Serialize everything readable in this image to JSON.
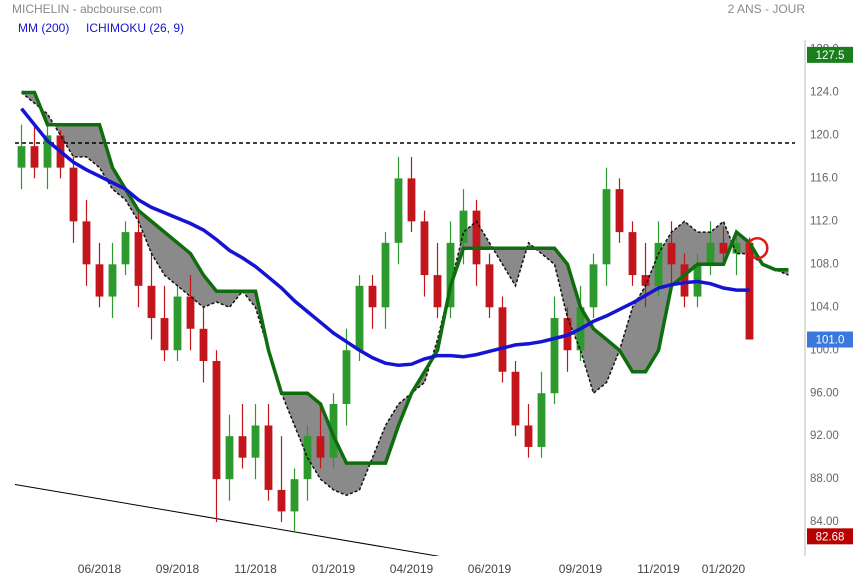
{
  "chart_data": {
    "type": "candlestick",
    "title": "MICHELIN - abcbourse.com",
    "period": "2 ANS - JOUR",
    "categories": [
      null,
      null,
      null,
      null,
      null,
      null,
      "06/2018",
      null,
      null,
      null,
      null,
      null,
      "09/2018",
      null,
      null,
      null,
      null,
      null,
      "11/2018",
      null,
      null,
      null,
      null,
      null,
      "01/2019",
      null,
      null,
      null,
      null,
      null,
      "04/2019",
      null,
      null,
      null,
      null,
      null,
      "06/2019",
      null,
      null,
      null,
      null,
      null,
      null,
      "09/2019",
      null,
      null,
      null,
      null,
      null,
      "11/2019",
      null,
      null,
      null,
      null,
      "01/2020",
      null,
      null,
      null,
      null,
      null
    ],
    "candles": {
      "up_color": "#2c9a2c",
      "down_color": "#c3161c",
      "open": [
        117,
        119,
        117,
        120,
        117,
        112,
        108,
        105,
        108,
        111,
        106,
        103,
        100,
        105,
        102,
        99,
        88,
        92,
        90,
        93,
        87,
        85,
        88,
        92,
        90,
        95,
        100,
        106,
        104,
        110,
        116,
        112,
        107,
        104,
        110,
        113,
        108,
        104,
        98,
        93,
        91,
        96,
        103,
        100,
        104,
        108,
        115,
        111,
        107,
        106,
        110,
        108,
        105,
        108,
        110,
        109,
        110,
        null,
        null,
        null
      ],
      "high": [
        121,
        121,
        121,
        120.5,
        118,
        114,
        110,
        110,
        112,
        113,
        109,
        106,
        106,
        107,
        104,
        100,
        94,
        95,
        95,
        95,
        92,
        89,
        93,
        95,
        96,
        102,
        107,
        107,
        111,
        118,
        118,
        113,
        110,
        112,
        115,
        114,
        109,
        105,
        99,
        95,
        98,
        105,
        104,
        106,
        109,
        117,
        116,
        112,
        110,
        112,
        112,
        109,
        109,
        112,
        111.5,
        111,
        110.5,
        null,
        null,
        null
      ],
      "low": [
        115,
        116,
        115,
        116,
        110,
        106,
        104,
        103,
        107,
        104,
        101,
        99,
        99,
        100,
        97,
        84,
        86,
        89,
        88,
        86,
        84,
        83,
        86,
        89,
        89,
        93,
        99,
        102,
        102,
        108,
        111,
        105,
        103,
        103,
        108,
        106,
        103,
        97,
        92,
        90,
        90,
        95,
        98,
        99,
        103,
        106,
        110,
        106,
        104,
        105,
        106,
        104,
        104,
        107,
        108,
        107,
        101,
        null,
        null,
        null
      ],
      "close": [
        119,
        117,
        120,
        117,
        112,
        108,
        105,
        108,
        111,
        106,
        103,
        100,
        105,
        102,
        99,
        88,
        92,
        90,
        93,
        87,
        85,
        88,
        92,
        90,
        95,
        100,
        106,
        104,
        110,
        116,
        112,
        107,
        104,
        110,
        113,
        108,
        104,
        98,
        93,
        91,
        96,
        103,
        100,
        104,
        108,
        115,
        111,
        107,
        106,
        110,
        108,
        105,
        108,
        110,
        109,
        110,
        101,
        null,
        null,
        null
      ]
    },
    "indicators": [
      {
        "name": "MM (200)",
        "color": "#1414d2",
        "values": [
          122.5,
          121,
          119.5,
          118.5,
          117.5,
          116.8,
          116.2,
          115.6,
          115,
          114,
          113.3,
          112.8,
          112.3,
          111.8,
          111.2,
          110.3,
          109.3,
          108.6,
          107.8,
          106.8,
          105.8,
          104.6,
          103.6,
          102.6,
          101.6,
          100.8,
          100,
          99.3,
          98.8,
          98.6,
          98.7,
          99.2,
          99.5,
          99.5,
          99.4,
          99.6,
          99.9,
          100.2,
          100.5,
          100.6,
          100.8,
          101.1,
          101.4,
          102,
          102.7,
          103.2,
          103.8,
          104.4,
          105.1,
          105.8,
          106.1,
          106.3,
          106.4,
          106.2,
          105.8,
          105.6,
          105.6,
          null,
          null,
          null
        ]
      },
      {
        "name": "ICHIMOKU (26, 9)",
        "color": "#1414d2",
        "cloud_color": "#8a8a8a",
        "span_a": {
          "color": "#0e6e0e",
          "values": [
            124,
            124,
            121,
            121,
            121,
            121,
            121,
            117,
            115,
            113,
            112,
            111,
            110,
            109,
            107,
            105.5,
            105.5,
            105.5,
            105.5,
            100,
            96,
            96,
            96,
            95,
            92,
            89.5,
            89.5,
            89.5,
            89.5,
            93,
            96,
            98,
            100,
            106,
            109.5,
            109.5,
            109.5,
            109.5,
            109.5,
            109.5,
            109.5,
            109.5,
            108,
            104,
            102,
            101,
            100,
            98,
            98,
            100,
            106,
            107,
            108,
            108,
            108,
            111,
            110,
            108,
            107.5,
            107.5
          ]
        },
        "span_b": {
          "color": "#111111",
          "values": [
            124,
            123,
            122,
            120,
            118,
            118,
            117,
            115,
            114,
            112,
            109,
            107,
            106,
            105,
            104,
            104.5,
            104,
            105.5,
            104,
            100,
            96,
            93,
            90,
            88,
            87,
            86.5,
            87,
            90,
            93,
            95,
            96,
            97,
            101,
            106,
            111,
            112,
            110,
            108,
            106,
            110,
            109,
            108,
            103,
            100,
            96,
            97,
            100,
            104,
            106,
            109,
            111,
            112,
            111,
            111,
            112,
            109,
            109,
            108,
            107.5,
            107
          ]
        }
      }
    ],
    "ylim": [
      81.5,
      130
    ],
    "yticks": [
      {
        "value": 84,
        "label": "84.00"
      },
      {
        "value": 88,
        "label": "88.00"
      },
      {
        "value": 92,
        "label": "92.00"
      },
      {
        "value": 96,
        "label": "96.00"
      },
      {
        "value": 100,
        "label": "100.0"
      },
      {
        "value": 104,
        "label": "104.0"
      },
      {
        "value": 108,
        "label": "108.0"
      },
      {
        "value": 112,
        "label": "112.0"
      },
      {
        "value": 116,
        "label": "116.0"
      },
      {
        "value": 120,
        "label": "120.0"
      },
      {
        "value": 124,
        "label": "124.0"
      },
      {
        "value": 128,
        "label": "128.0"
      }
    ],
    "badges": [
      {
        "value": 127.5,
        "color": "#1a7f1a"
      },
      {
        "value": {
          "value": 101,
          "label": "101.0"
        },
        "color": "#3a78e0"
      },
      {
        "value": 82.68,
        "color": "#b80000"
      }
    ],
    "resistance": {
      "y": 119.3,
      "color": "#000000"
    },
    "trendline": {
      "x": [
        -0.5,
        32.2
      ],
      "y": [
        87.5,
        80.8
      ],
      "color": "#000000"
    },
    "marker": {
      "x": 56.6,
      "y": 109.5,
      "color": "#e01818"
    }
  }
}
